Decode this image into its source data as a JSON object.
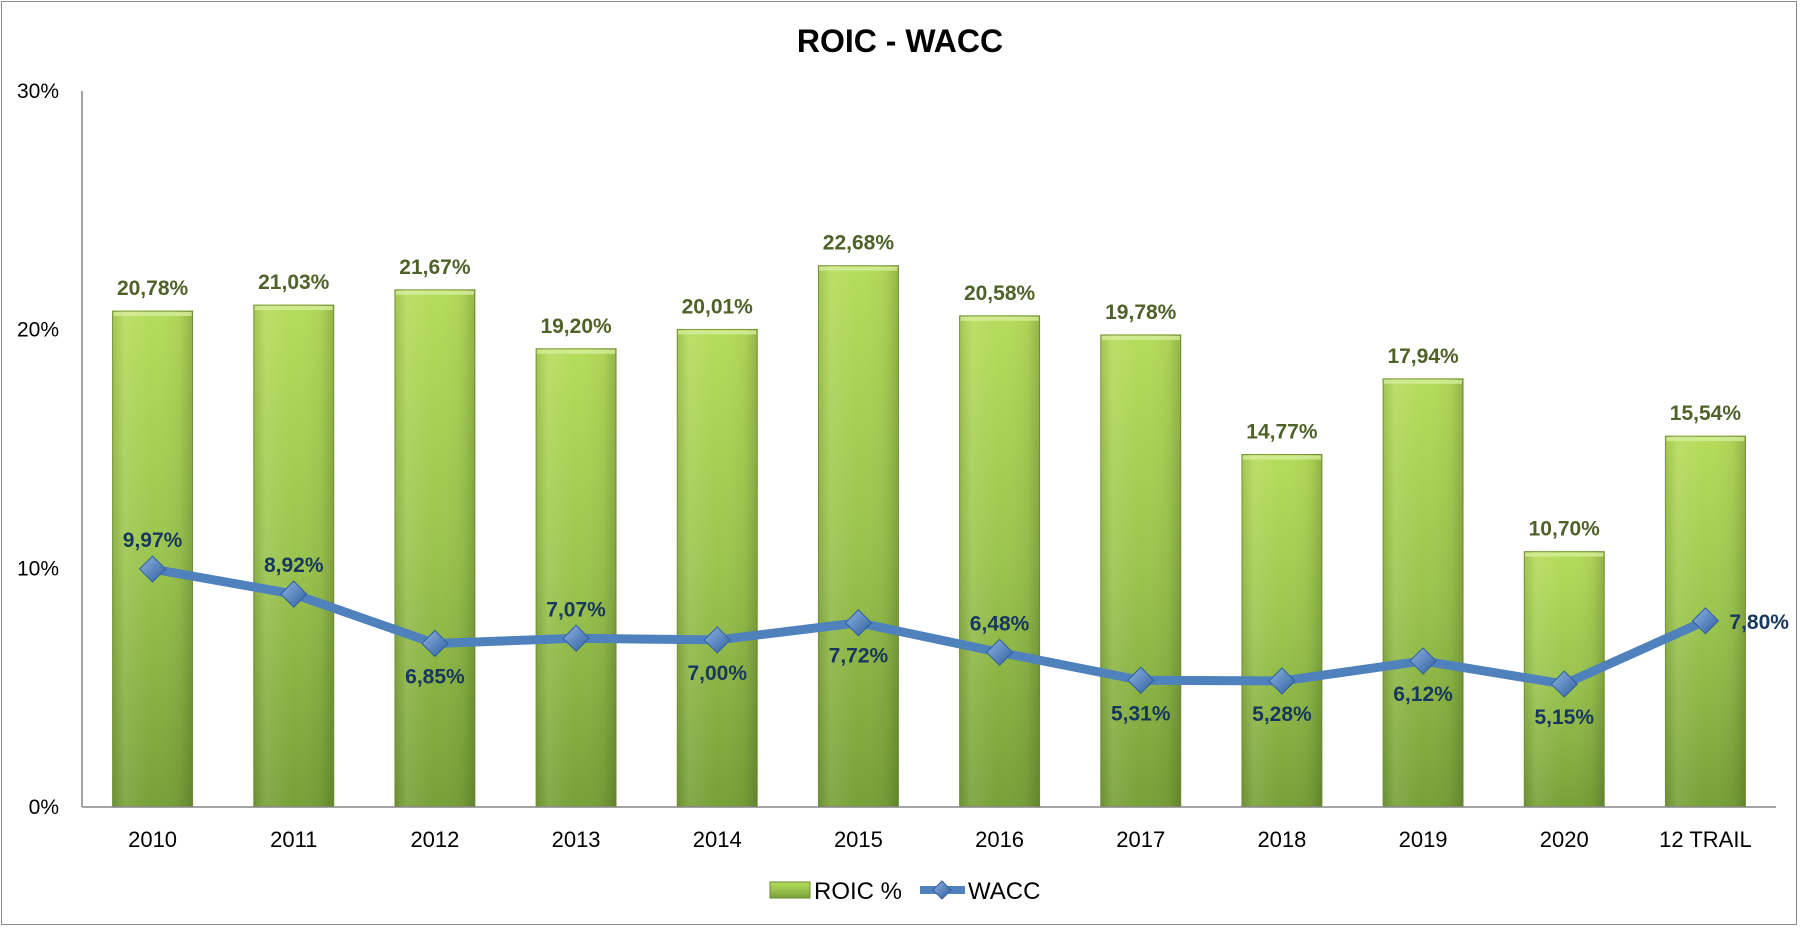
{
  "chart_data": {
    "type": "bar",
    "title": "ROIC - WACC",
    "categories": [
      "2010",
      "2011",
      "2012",
      "2013",
      "2014",
      "2015",
      "2016",
      "2017",
      "2018",
      "2019",
      "2020",
      "12 TRAIL"
    ],
    "ylim": [
      0,
      30
    ],
    "yticks": [
      "0%",
      "10%",
      "20%",
      "30%"
    ],
    "grid": false,
    "legend_position": "bottom",
    "series": [
      {
        "name": "ROIC %",
        "kind": "bar",
        "color": "#9bbb59",
        "values": [
          20.78,
          21.03,
          21.67,
          19.2,
          20.01,
          22.68,
          20.58,
          19.78,
          14.77,
          17.94,
          10.7,
          15.54
        ],
        "labels": [
          "20,78%",
          "21,03%",
          "21,67%",
          "19,20%",
          "20,01%",
          "22,68%",
          "20,58%",
          "19,78%",
          "14,77%",
          "17,94%",
          "10,70%",
          "15,54%"
        ]
      },
      {
        "name": "WACC",
        "kind": "line",
        "color": "#4f81bd",
        "values": [
          9.97,
          8.92,
          6.85,
          7.07,
          7.0,
          7.72,
          6.48,
          5.31,
          5.28,
          6.12,
          5.15,
          7.8
        ],
        "labels": [
          "9,97%",
          "8,92%",
          "6,85%",
          "7,07%",
          "7,00%",
          "7,72%",
          "6,48%",
          "5,31%",
          "5,28%",
          "6,12%",
          "5,15%",
          "7,80%"
        ],
        "label_positions": [
          "above",
          "above",
          "below",
          "above",
          "below",
          "below",
          "above",
          "below",
          "below",
          "below",
          "below",
          "right"
        ]
      }
    ]
  }
}
